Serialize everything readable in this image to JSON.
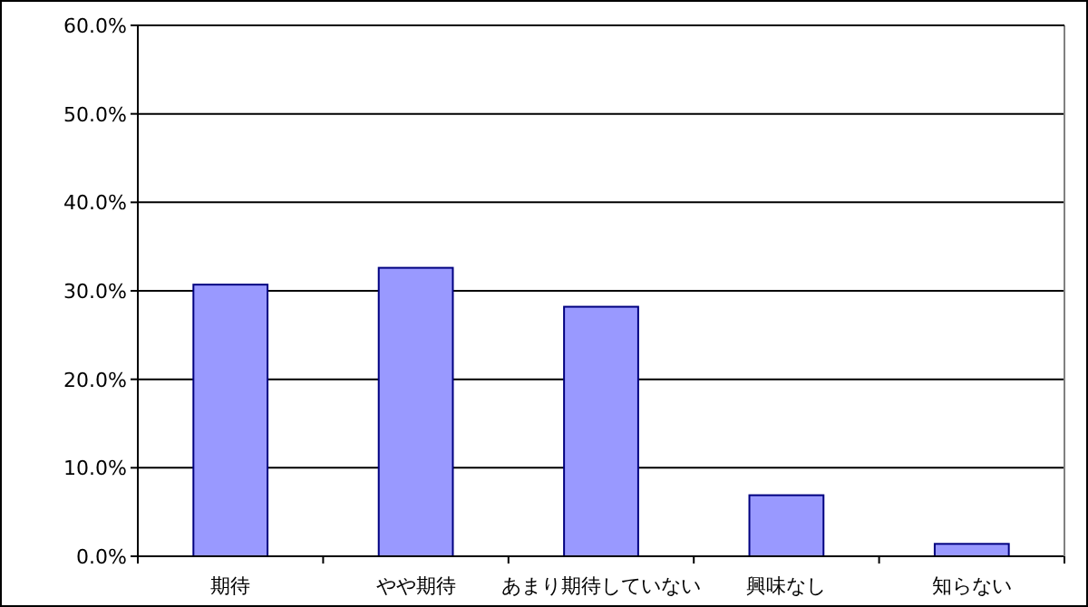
{
  "chart_data": {
    "type": "bar",
    "categories": [
      "期待",
      "やや期待",
      "あまり期待していない",
      "興味なし",
      "知らない"
    ],
    "values": [
      30.7,
      32.6,
      28.2,
      6.9,
      1.4
    ],
    "color": "#9999ff",
    "ylim": [
      0,
      60
    ],
    "yticks": [
      {
        "value": 0,
        "label": "0.0%"
      },
      {
        "value": 10,
        "label": "10.0%"
      },
      {
        "value": 20,
        "label": "20.0%"
      },
      {
        "value": 30,
        "label": "30.0%"
      },
      {
        "value": 40,
        "label": "40.0%"
      },
      {
        "value": 50,
        "label": "50.0%"
      },
      {
        "value": 60,
        "label": "60.0%"
      }
    ],
    "grid": "y"
  }
}
